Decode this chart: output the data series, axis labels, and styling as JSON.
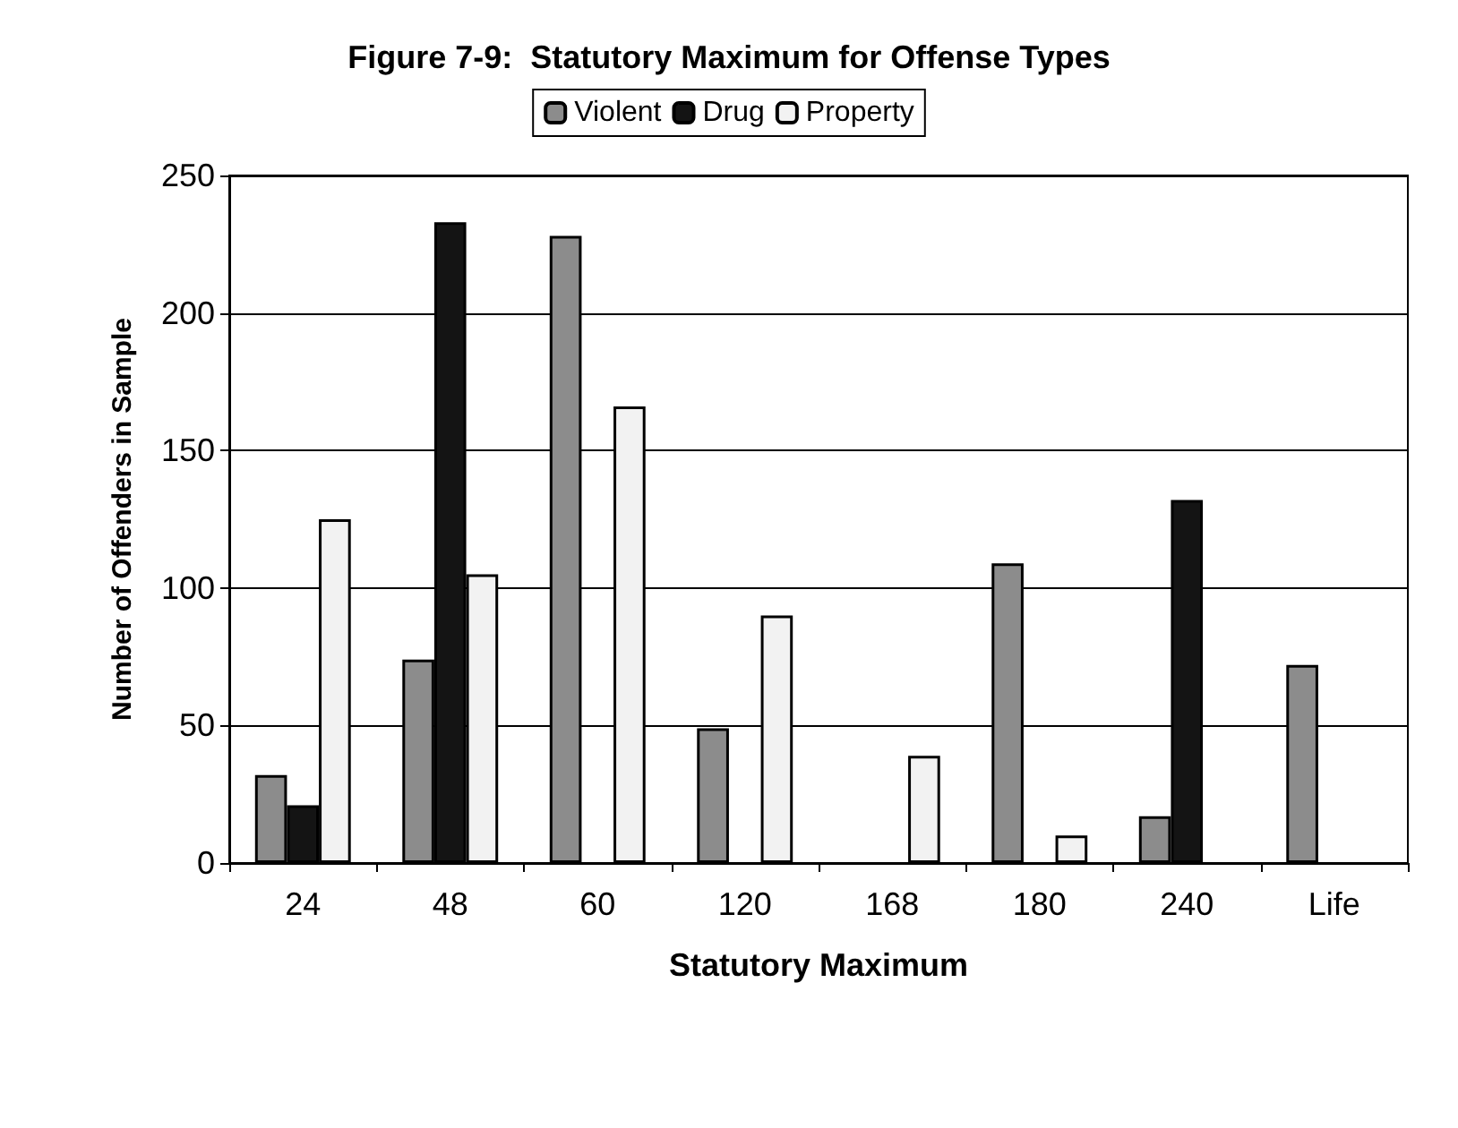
{
  "chart_data": {
    "type": "bar",
    "title": "Figure 7-9:  Statutory Maximum for Offense Types",
    "xlabel": "Statutory Maximum",
    "ylabel": "Number of Offenders in Sample",
    "categories": [
      "24",
      "48",
      "60",
      "120",
      "168",
      "180",
      "240",
      "Life"
    ],
    "series": [
      {
        "name": "Violent",
        "color": "#8c8c8c",
        "values": [
          32,
          74,
          228,
          49,
          null,
          109,
          17,
          72
        ]
      },
      {
        "name": "Drug",
        "color": "#141414",
        "values": [
          21,
          233,
          null,
          null,
          null,
          null,
          132,
          null
        ]
      },
      {
        "name": "Property",
        "color": "#f2f2f2",
        "values": [
          125,
          105,
          166,
          90,
          39,
          10,
          null,
          null
        ]
      }
    ],
    "ylim": [
      0,
      250
    ],
    "yticks": [
      0,
      50,
      100,
      150,
      200,
      250
    ],
    "grid": "y",
    "legend": "top"
  }
}
